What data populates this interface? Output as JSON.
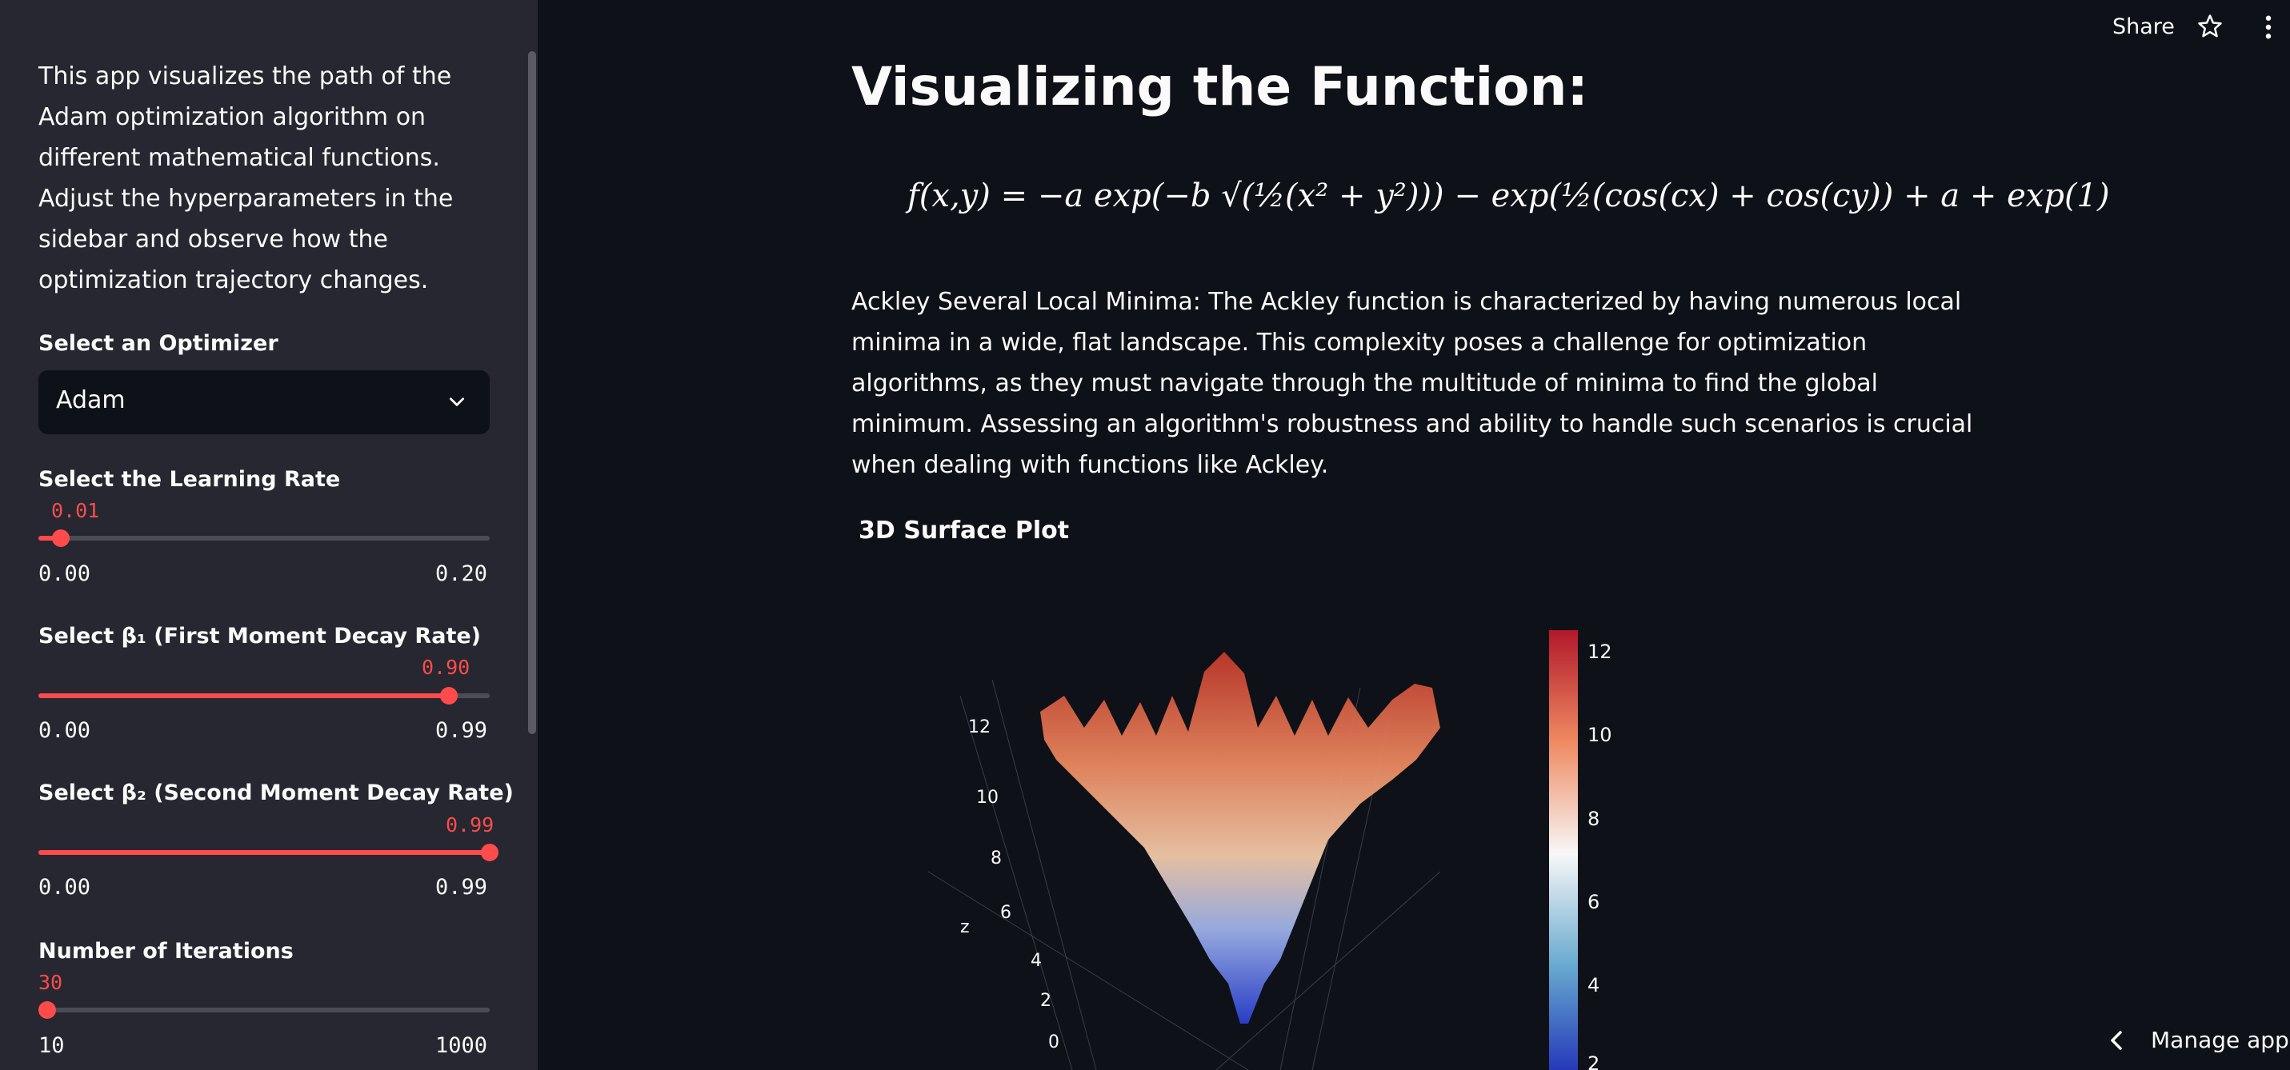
{
  "sidebar": {
    "intro": "This app visualizes the path of the Adam optimization algorithm on different mathematical functions. Adjust the hyperparameters in the sidebar and observe how the optimization trajectory changes.",
    "optimizer": {
      "label": "Select an Optimizer",
      "value": "Adam"
    },
    "learning_rate": {
      "label": "Select the Learning Rate",
      "value": "0.01",
      "min": "0.00",
      "max": "0.20",
      "fraction": 0.05
    },
    "beta1": {
      "label": "Select β₁ (First Moment Decay Rate)",
      "value": "0.90",
      "min": "0.00",
      "max": "0.99",
      "fraction": 0.909
    },
    "beta2": {
      "label": "Select β₂ (Second Moment Decay Rate)",
      "value": "0.99",
      "min": "0.00",
      "max": "0.99",
      "fraction": 1.0
    },
    "iterations": {
      "label": "Number of Iterations",
      "value": "30",
      "min": "10",
      "max": "1000",
      "fraction": 0.02
    }
  },
  "header": {
    "share": "Share",
    "icons": [
      "star-icon",
      "kebab-menu-icon"
    ]
  },
  "main": {
    "title": "Visualizing the Function:",
    "formula": "f(x,y) = −a exp(−b √(½(x² + y²))) − exp(½(cos(cx) + cos(cy)) + a + exp(1)",
    "description": "Ackley Several Local Minima: The Ackley function is characterized by having numerous local minima in a wide, flat landscape. This complexity poses a challenge for optimization algorithms, as they must navigate through the multitude of minima to find the global minimum. Assessing an algorithm's robustness and ability to handle such scenarios is crucial when dealing with functions like Ackley.",
    "plot_title": "3D Surface Plot",
    "plot": {
      "z_axis_title": "z",
      "z_ticks": [
        "12",
        "10",
        "8",
        "6",
        "4",
        "2",
        "0"
      ],
      "colorbar_ticks": [
        "12",
        "10",
        "8",
        "6",
        "4",
        "2"
      ],
      "colorscale": [
        "#b2182b",
        "#ef8a62",
        "#f7f7f7",
        "#67a9cf",
        "#2131b8"
      ]
    }
  },
  "footer": {
    "manage_app": "Manage app"
  }
}
